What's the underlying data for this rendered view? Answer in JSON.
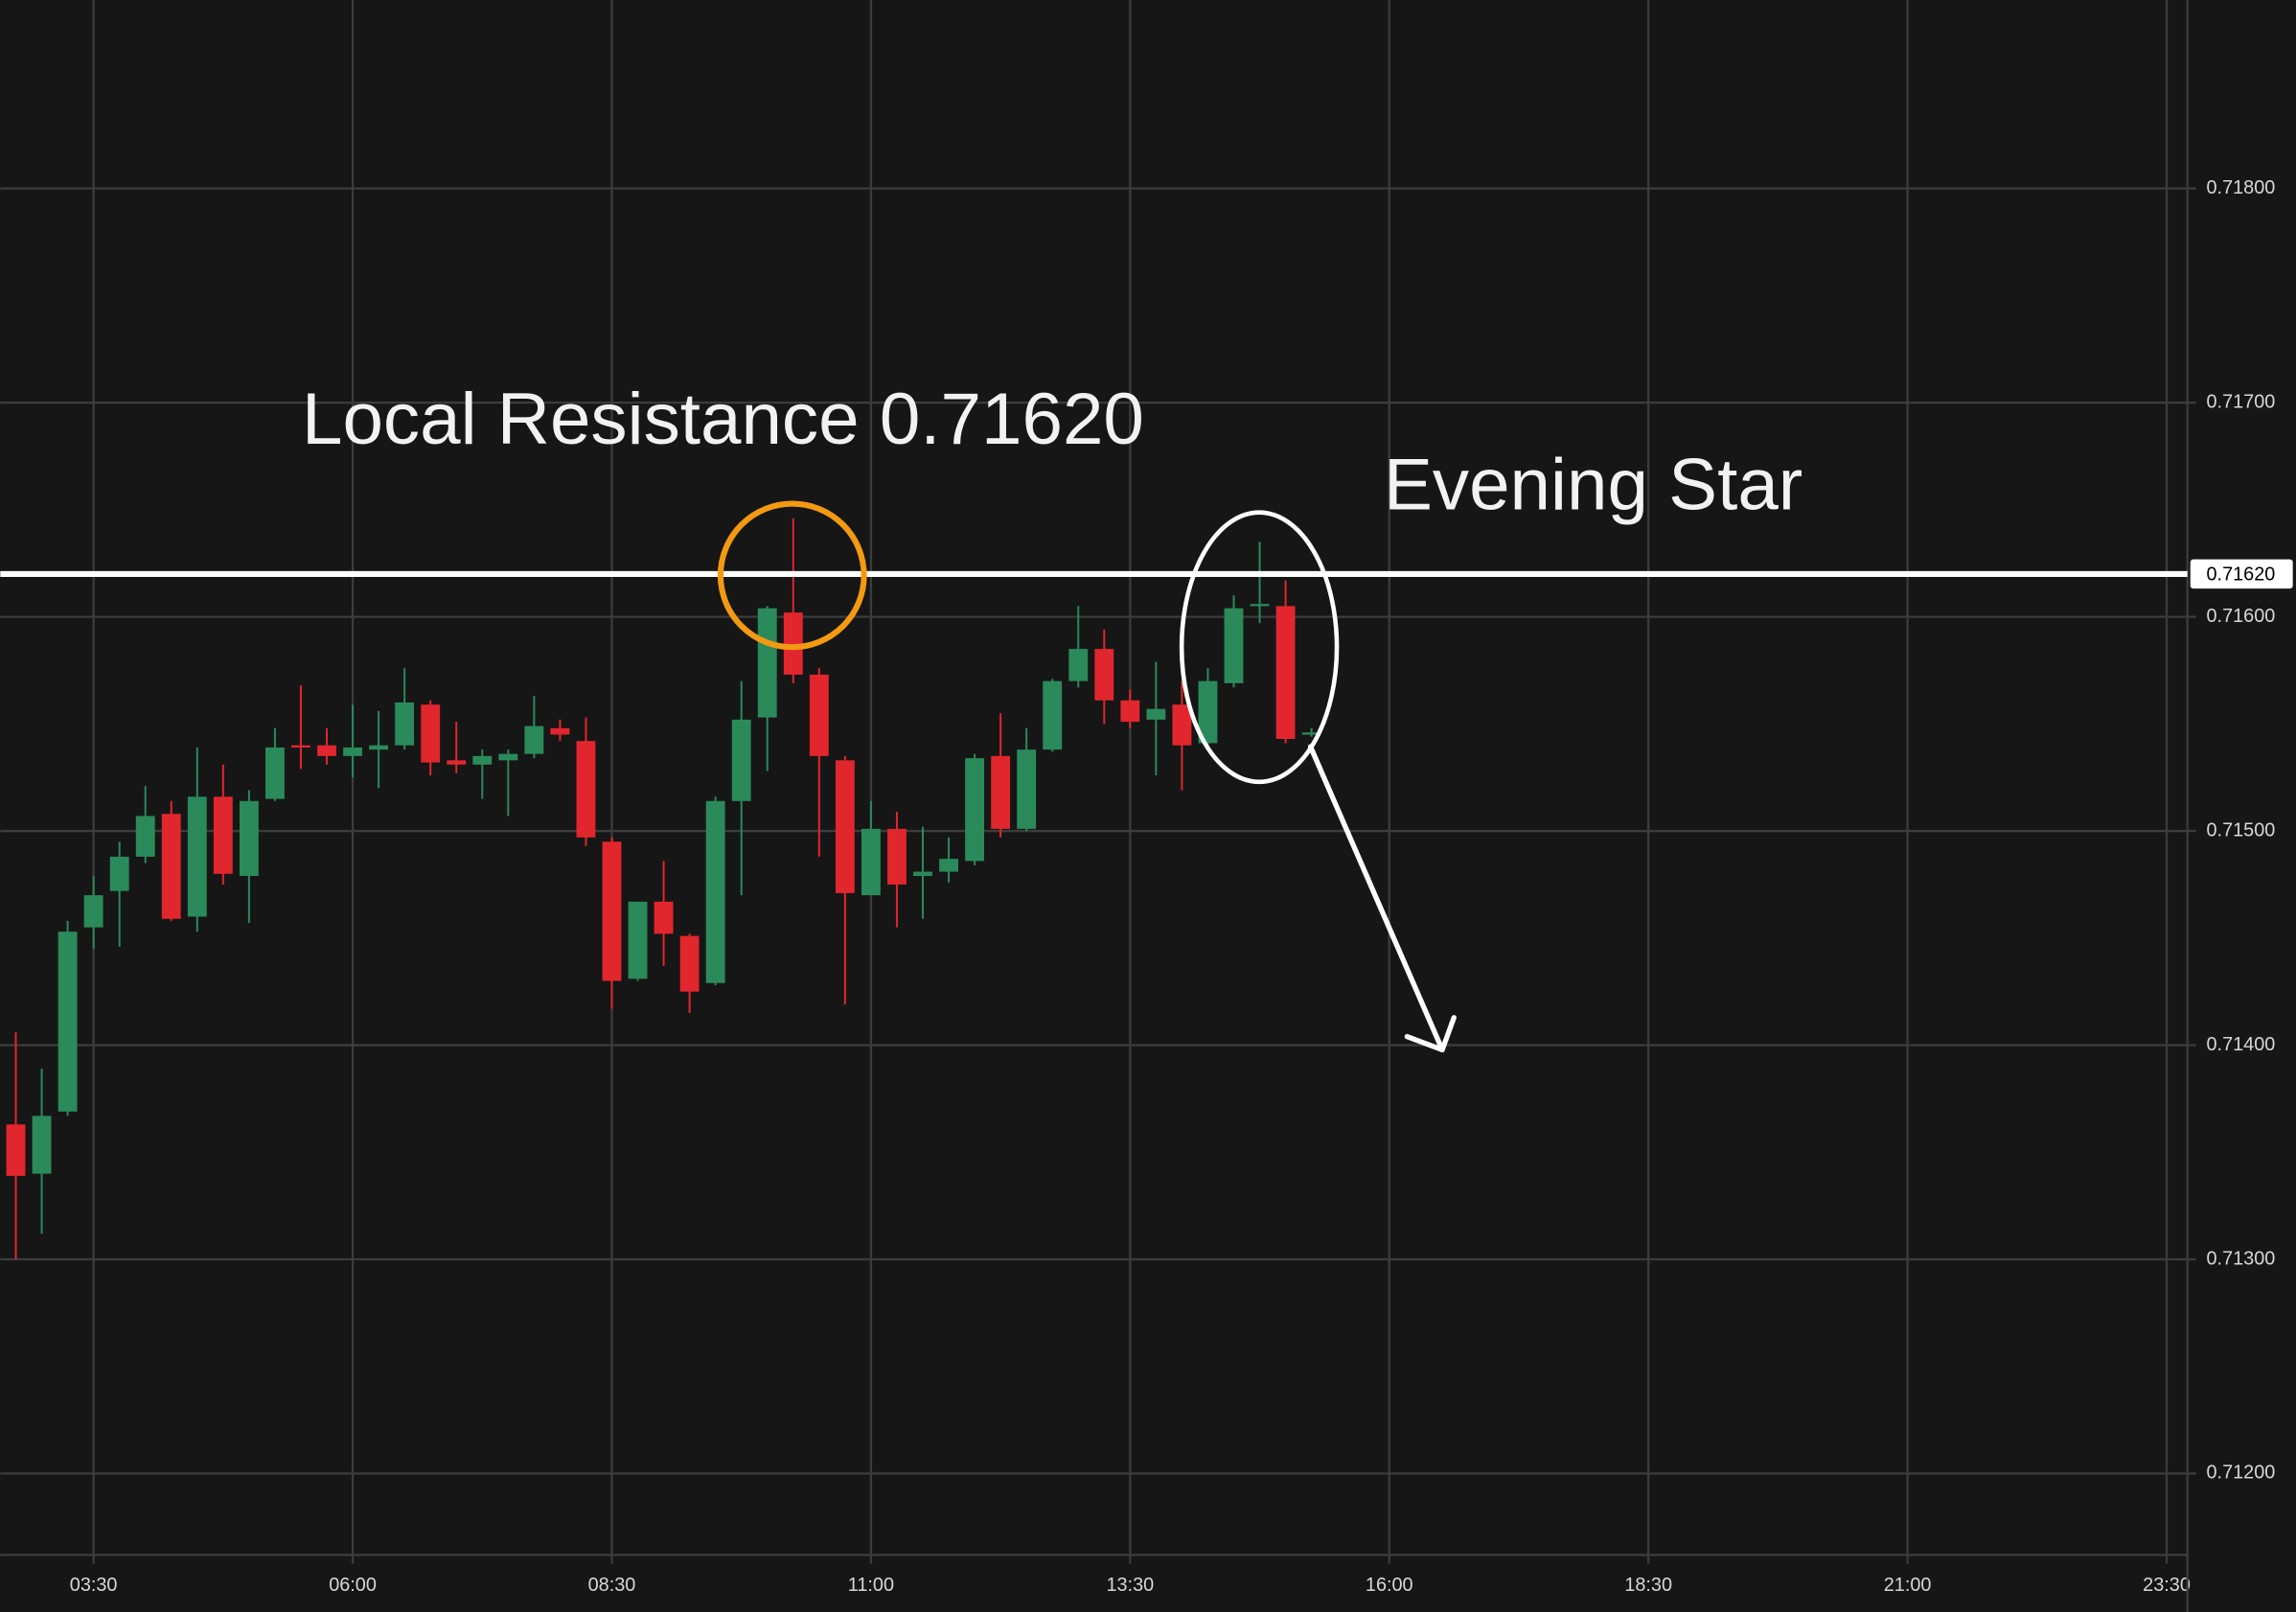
{
  "chart_data": {
    "type": "candlestick",
    "up_color": "#2b8a5a",
    "down_color": "#e2262d",
    "grid": true,
    "grid_color": "#3c3c3c",
    "xlim": [
      156,
      1422
    ],
    "ylim": [
      0.71162,
      0.71888
    ],
    "xticks": [
      {
        "value": 210,
        "label": "03:30"
      },
      {
        "value": 360,
        "label": "06:00"
      },
      {
        "value": 510,
        "label": "08:30"
      },
      {
        "value": 660,
        "label": "11:00"
      },
      {
        "value": 810,
        "label": "13:30"
      },
      {
        "value": 960,
        "label": "16:00"
      },
      {
        "value": 1110,
        "label": "18:30"
      },
      {
        "value": 1260,
        "label": "21:00"
      },
      {
        "value": 1410,
        "label": "23:30"
      }
    ],
    "yticks": [
      {
        "value": 0.712,
        "label": "0.71200"
      },
      {
        "value": 0.713,
        "label": "0.71300"
      },
      {
        "value": 0.714,
        "label": "0.71400"
      },
      {
        "value": 0.715,
        "label": "0.71500"
      },
      {
        "value": 0.716,
        "label": "0.71600"
      },
      {
        "value": 0.717,
        "label": "0.71700"
      },
      {
        "value": 0.718,
        "label": "0.71800"
      }
    ],
    "x": [
      165,
      180,
      195,
      210,
      225,
      240,
      255,
      270,
      285,
      300,
      315,
      330,
      345,
      360,
      375,
      390,
      405,
      420,
      435,
      450,
      465,
      480,
      495,
      510,
      525,
      540,
      555,
      570,
      585,
      600,
      615,
      630,
      645,
      660,
      675,
      690,
      705,
      720,
      735,
      750,
      765,
      780,
      795,
      810,
      825,
      840,
      855,
      870,
      885,
      900,
      915
    ],
    "open": [
      0.71363,
      0.7134,
      0.71369,
      0.71455,
      0.71472,
      0.71488,
      0.71508,
      0.7146,
      0.71516,
      0.71479,
      0.71515,
      0.7154,
      0.7154,
      0.71535,
      0.71538,
      0.7154,
      0.71559,
      0.71533,
      0.71531,
      0.71533,
      0.71536,
      0.71548,
      0.71542,
      0.71495,
      0.71431,
      0.71467,
      0.71451,
      0.71429,
      0.71514,
      0.71553,
      0.71602,
      0.71573,
      0.71533,
      0.7147,
      0.71501,
      0.71479,
      0.71481,
      0.71486,
      0.71535,
      0.71501,
      0.71538,
      0.7157,
      0.71585,
      0.71561,
      0.71552,
      0.71559,
      0.71541,
      0.71569,
      0.71605,
      0.71605,
      0.71545
    ],
    "high": [
      0.71406,
      0.71389,
      0.71458,
      0.71479,
      0.71495,
      0.71521,
      0.71514,
      0.71539,
      0.71531,
      0.71519,
      0.71548,
      0.71568,
      0.71548,
      0.71559,
      0.71556,
      0.71576,
      0.71561,
      0.71551,
      0.71538,
      0.71538,
      0.71563,
      0.71552,
      0.71553,
      0.71497,
      0.71467,
      0.71486,
      0.71452,
      0.71516,
      0.7157,
      0.71605,
      0.71646,
      0.71576,
      0.71535,
      0.71514,
      0.71509,
      0.71502,
      0.71497,
      0.71536,
      0.71555,
      0.71548,
      0.71571,
      0.71605,
      0.71594,
      0.71566,
      0.71579,
      0.7157,
      0.71576,
      0.7161,
      0.71635,
      0.71617,
      0.71548
    ],
    "low": [
      0.713,
      0.71312,
      0.71367,
      0.71445,
      0.71446,
      0.71485,
      0.71458,
      0.71453,
      0.71475,
      0.71457,
      0.71514,
      0.71529,
      0.71531,
      0.71525,
      0.7152,
      0.71538,
      0.71526,
      0.71527,
      0.71515,
      0.71507,
      0.71534,
      0.71542,
      0.71493,
      0.71417,
      0.7143,
      0.71437,
      0.71415,
      0.71428,
      0.7147,
      0.71528,
      0.71569,
      0.71488,
      0.71419,
      0.7147,
      0.71455,
      0.71459,
      0.71476,
      0.71484,
      0.71497,
      0.715,
      0.71537,
      0.71567,
      0.7155,
      0.71548,
      0.71526,
      0.71519,
      0.7154,
      0.71567,
      0.71597,
      0.71541,
      0.71544
    ],
    "close": [
      0.71339,
      0.71367,
      0.71453,
      0.7147,
      0.71488,
      0.71507,
      0.71459,
      0.71516,
      0.7148,
      0.71514,
      0.71539,
      0.71539,
      0.71535,
      0.71539,
      0.7154,
      0.7156,
      0.71532,
      0.71531,
      0.71535,
      0.71536,
      0.71549,
      0.71545,
      0.71497,
      0.7143,
      0.71467,
      0.71452,
      0.71425,
      0.71514,
      0.71552,
      0.71604,
      0.71573,
      0.71535,
      0.71471,
      0.71501,
      0.71475,
      0.71481,
      0.71487,
      0.71534,
      0.71501,
      0.71538,
      0.7157,
      0.71585,
      0.71561,
      0.71551,
      0.71557,
      0.7154,
      0.7157,
      0.71604,
      0.71606,
      0.71543,
      0.71546
    ],
    "hline": {
      "value": 0.7162,
      "label": "0.71620",
      "color": "#ffffff"
    },
    "annotations": [
      "Local Resistance 0.71620",
      "Evening Star"
    ]
  }
}
